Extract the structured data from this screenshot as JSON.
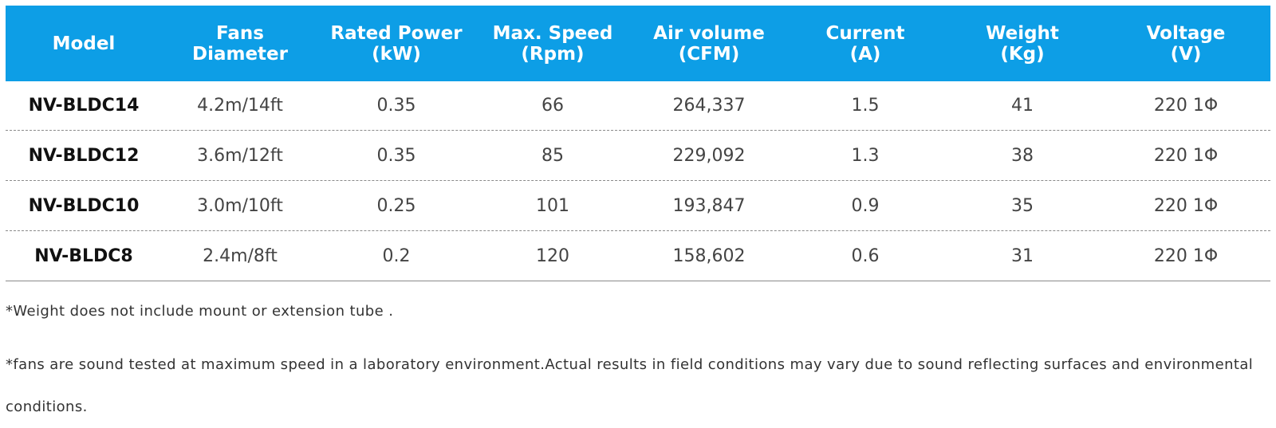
{
  "table": {
    "headers": [
      [
        "Model"
      ],
      [
        "Fans",
        "Diameter"
      ],
      [
        "Rated Power",
        "(kW)"
      ],
      [
        "Max. Speed",
        "(Rpm)"
      ],
      [
        "Air volume",
        "(CFM)"
      ],
      [
        "Current",
        "(A)"
      ],
      [
        "Weight",
        "(Kg)"
      ],
      [
        "Voltage",
        "(V)"
      ]
    ],
    "rows": [
      [
        "NV-BLDC14",
        "4.2m/14ft",
        "0.35",
        "66",
        "264,337",
        "1.5",
        "41",
        "220 1Φ"
      ],
      [
        "NV-BLDC12",
        "3.6m/12ft",
        "0.35",
        "85",
        "229,092",
        "1.3",
        "38",
        "220 1Φ"
      ],
      [
        "NV-BLDC10",
        "3.0m/10ft",
        "0.25",
        "101",
        "193,847",
        "0.9",
        "35",
        "220 1Φ"
      ],
      [
        "NV-BLDC8",
        "2.4m/8ft",
        "0.2",
        "120",
        "158,602",
        "0.6",
        "31",
        "220 1Φ"
      ]
    ]
  },
  "notes": {
    "weight_note": "*Weight does not include mount or extension tube .",
    "sound_note": "*fans are sound tested at maximum speed in a laboratory environment.Actual results in field conditions may vary due to sound reflecting surfaces and environmental conditions."
  },
  "colors": {
    "header_background": "#0d9ee6",
    "header_text": "#ffffff",
    "row_divider": "#8a8a8a"
  }
}
